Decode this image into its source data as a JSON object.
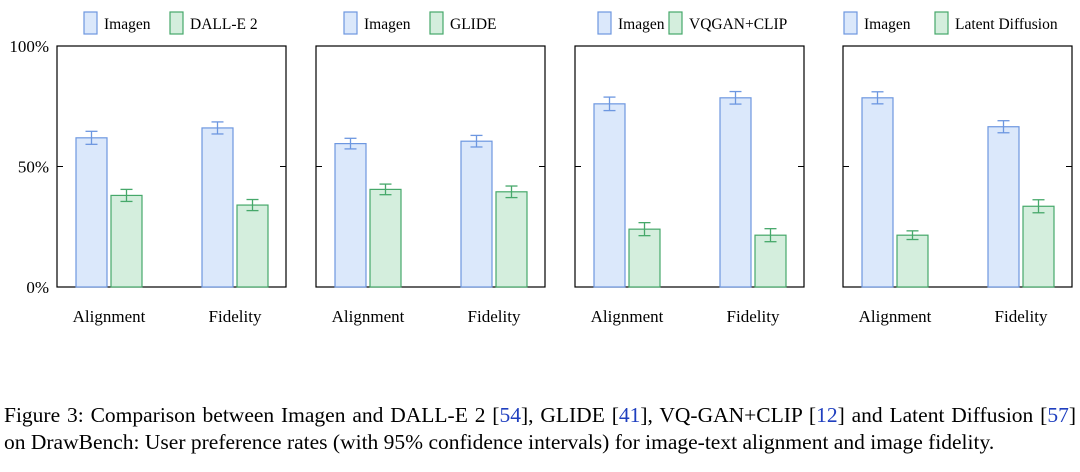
{
  "colors": {
    "imagen_fill": "#dbe8fb",
    "imagen_stroke": "#6d97e0",
    "other_fill": "#d4eedd",
    "other_stroke": "#46a86a",
    "axis": "#000000",
    "ref_link": "#1f3fbf"
  },
  "y_axis": {
    "ticks": [
      "0%",
      "50%",
      "100%"
    ],
    "tick_values": [
      0,
      50,
      100
    ]
  },
  "chart_data": [
    {
      "type": "bar",
      "categories": [
        "Alignment",
        "Fidelity"
      ],
      "ylim": [
        0,
        100
      ],
      "legend": [
        "Imagen",
        "DALL-E 2"
      ],
      "series": [
        {
          "name": "Imagen",
          "values": [
            61.9,
            66.0
          ],
          "err": [
            2.7,
            2.5
          ]
        },
        {
          "name": "DALL-E 2",
          "values": [
            38.0,
            34.0
          ],
          "err": [
            2.5,
            2.3
          ]
        }
      ]
    },
    {
      "type": "bar",
      "categories": [
        "Alignment",
        "Fidelity"
      ],
      "ylim": [
        0,
        100
      ],
      "legend": [
        "Imagen",
        "GLIDE"
      ],
      "series": [
        {
          "name": "Imagen",
          "values": [
            59.5,
            60.5
          ],
          "err": [
            2.2,
            2.4
          ]
        },
        {
          "name": "GLIDE",
          "values": [
            40.5,
            39.5
          ],
          "err": [
            2.2,
            2.4
          ]
        }
      ]
    },
    {
      "type": "bar",
      "categories": [
        "Alignment",
        "Fidelity"
      ],
      "ylim": [
        0,
        100
      ],
      "legend": [
        "Imagen",
        "VQGAN+CLIP"
      ],
      "series": [
        {
          "name": "Imagen",
          "values": [
            76.0,
            78.5
          ],
          "err": [
            2.8,
            2.6
          ]
        },
        {
          "name": "VQGAN+CLIP",
          "values": [
            24.0,
            21.5
          ],
          "err": [
            2.7,
            2.7
          ]
        }
      ]
    },
    {
      "type": "bar",
      "categories": [
        "Alignment",
        "Fidelity"
      ],
      "ylim": [
        0,
        100
      ],
      "legend": [
        "Imagen",
        "Latent Diffusion"
      ],
      "series": [
        {
          "name": "Imagen",
          "values": [
            78.5,
            66.5
          ],
          "err": [
            2.5,
            2.5
          ]
        },
        {
          "name": "Latent Diffusion",
          "values": [
            21.5,
            33.5
          ],
          "err": [
            1.8,
            2.7
          ]
        }
      ]
    }
  ],
  "caption": {
    "p1": "Figure 3: Comparison between Imagen and DALL-E 2 [",
    "r1": "54",
    "p2": "], GLIDE [",
    "r2": "41",
    "p3": "], VQ-GAN+CLIP [",
    "r3": "12",
    "p4": "] and Latent Diffusion [",
    "r4": "57",
    "p5": "] on DrawBench: User preference rates (with 95% confidence intervals) for image-text alignment and image fidelity."
  }
}
